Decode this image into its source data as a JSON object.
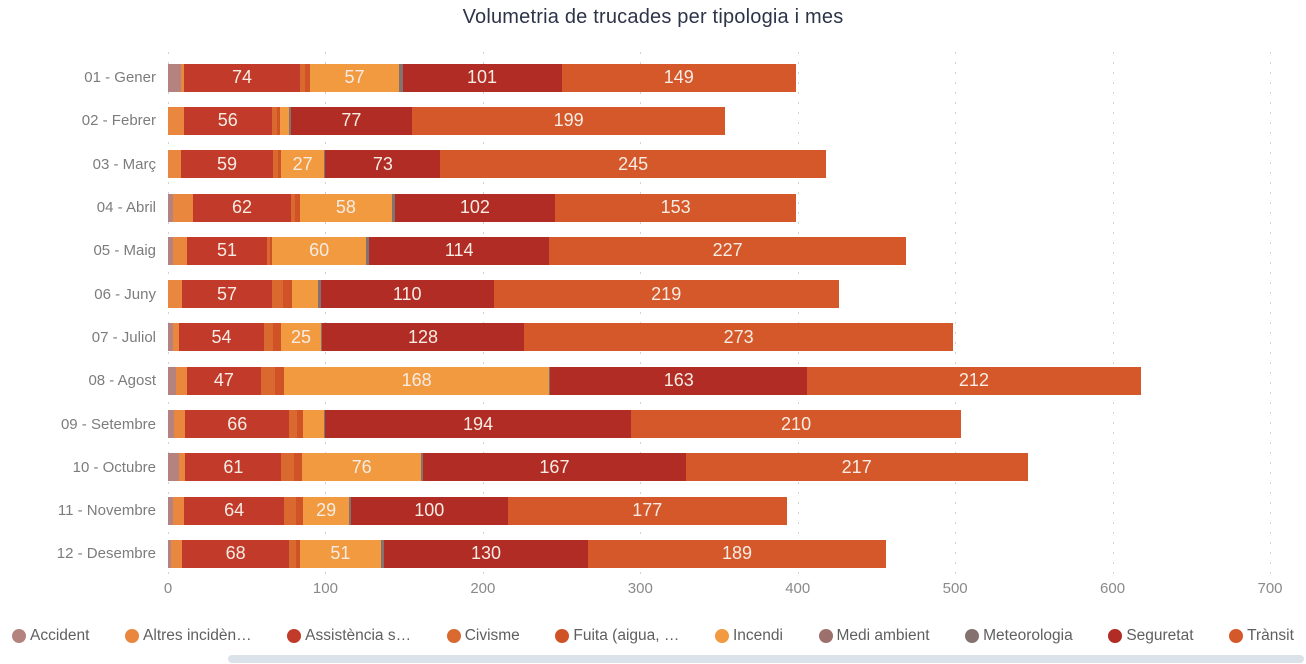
{
  "chart_data": {
    "type": "bar",
    "orientation": "horizontal",
    "stacked": true,
    "title": "Volumetria de trucades per tipologia i mes",
    "categories": [
      "01 - Gener",
      "02 - Febrer",
      "03 - Març",
      "04 - Abril",
      "05 - Maig",
      "06 - Juny",
      "07 - Juliol",
      "08 - Agost",
      "09 - Setembre",
      "10 - Octubre",
      "11 - Novembre",
      "12 - Desembre"
    ],
    "xlim": [
      0,
      700
    ],
    "x_ticks": [
      0,
      100,
      200,
      300,
      400,
      500,
      600,
      700
    ],
    "grid": "dotted-vertical",
    "legend_position": "bottom",
    "data_label_min_value": 25,
    "series": [
      {
        "label": "Accident",
        "color": "#b5837f",
        "values": [
          8,
          0,
          0,
          3,
          3,
          0,
          3,
          5,
          4,
          7,
          3,
          2
        ]
      },
      {
        "label": "Altres incidèn…",
        "color": "#e8873d",
        "values": [
          2,
          10,
          8,
          13,
          9,
          9,
          4,
          7,
          7,
          4,
          7,
          7
        ]
      },
      {
        "label": "Assistència s…",
        "color": "#c13a2a",
        "values": [
          74,
          56,
          59,
          62,
          51,
          57,
          54,
          47,
          66,
          61,
          64,
          68
        ]
      },
      {
        "label": "Civisme",
        "color": "#d9692f",
        "values": [
          3,
          3,
          3,
          3,
          2,
          7,
          6,
          9,
          5,
          8,
          7,
          4
        ]
      },
      {
        "label": "Fuita (aigua, …",
        "color": "#d05328",
        "values": [
          3,
          2,
          2,
          3,
          1,
          6,
          5,
          6,
          4,
          5,
          5,
          3
        ]
      },
      {
        "label": "Incendi",
        "color": "#f29a40",
        "values": [
          57,
          6,
          27,
          58,
          60,
          16,
          25,
          168,
          13,
          76,
          29,
          51
        ]
      },
      {
        "label": "Medi ambient",
        "color": "#9e706c",
        "values": [
          0,
          0,
          0,
          0,
          0,
          0,
          0,
          0,
          0,
          0,
          0,
          0
        ]
      },
      {
        "label": "Meteorologia",
        "color": "#837270",
        "values": [
          2,
          1,
          1,
          2,
          2,
          2,
          1,
          1,
          1,
          1,
          1,
          2
        ]
      },
      {
        "label": "Seguretat",
        "color": "#b12c24",
        "values": [
          101,
          77,
          73,
          102,
          114,
          110,
          128,
          163,
          194,
          167,
          100,
          130
        ]
      },
      {
        "label": "Trànsit",
        "color": "#d4582a",
        "values": [
          149,
          199,
          245,
          153,
          227,
          219,
          273,
          212,
          210,
          217,
          177,
          189
        ]
      }
    ]
  }
}
